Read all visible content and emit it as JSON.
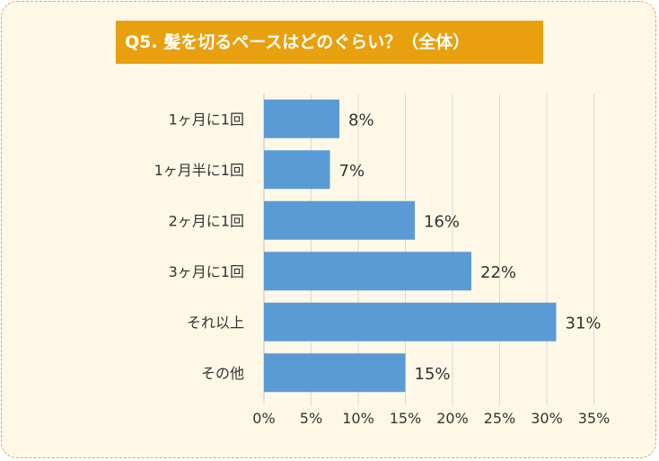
{
  "card": {
    "border_color": "#e9a15a",
    "background": "#fff8e6"
  },
  "chart_data": {
    "type": "bar",
    "orientation": "horizontal",
    "title": "Q5. 髪を切るペースはどのぐらい？（全体）",
    "title_background": "#e8a00e",
    "categories": [
      "1ヶ月に1回",
      "1ヶ月半に1回",
      "2ヶ月に1回",
      "3ヶ月に1回",
      "それ以上",
      "その他"
    ],
    "values": [
      8,
      7,
      16,
      22,
      31,
      15
    ],
    "value_labels": [
      "8%",
      "7%",
      "16%",
      "22%",
      "31%",
      "15%"
    ],
    "x_ticks": [
      "0%",
      "5%",
      "10%",
      "15%",
      "20%",
      "25%",
      "30%",
      "35%"
    ],
    "xlim": [
      0,
      35
    ],
    "grid": true,
    "bar_color": "#5b9bd5",
    "xlabel": "",
    "ylabel": ""
  }
}
